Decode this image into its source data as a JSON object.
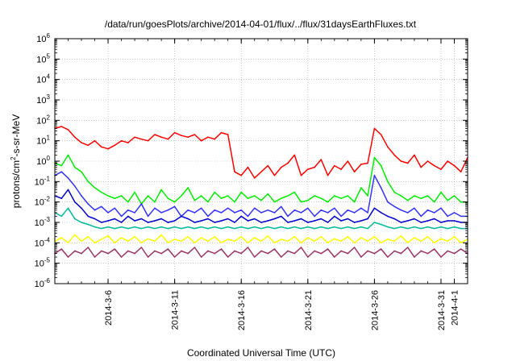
{
  "chart_data": {
    "type": "line",
    "title": "/data/run/goesPlots/archive/2014-04-01/flux/../flux/31daysEarthFluxes.txt",
    "xlabel": "Coordinated Universal Time (UTC)",
    "ylabel": "protons/cm2-s-sr-MeV",
    "ylabel_parts": [
      "protons/cm",
      "2",
      "-s-sr-MeV"
    ],
    "yscale": "log",
    "ylim_exp": [
      -6,
      6
    ],
    "xlim_days": [
      0,
      31
    ],
    "grid": true,
    "x_ticks": [
      {
        "label": "2014-3-6",
        "day": 4
      },
      {
        "label": "2014-3-11",
        "day": 9
      },
      {
        "label": "2014-3-16",
        "day": 14
      },
      {
        "label": "2014-3-21",
        "day": 19
      },
      {
        "label": "2014-3-26",
        "day": 24
      },
      {
        "label": "2014-3-31",
        "day": 29
      },
      {
        "label": "2014-4-1",
        "day": 30
      }
    ],
    "y_tick_exponents": [
      -6,
      -5,
      -4,
      -3,
      -2,
      -1,
      0,
      1,
      2,
      3,
      4,
      5,
      6
    ],
    "series": [
      {
        "color": "#ff0000",
        "x": [
          0,
          0.5,
          1,
          1.5,
          2,
          2.5,
          3,
          3.5,
          4,
          4.5,
          5,
          5.5,
          6,
          6.5,
          7,
          7.5,
          8,
          8.5,
          9,
          9.5,
          10,
          10.5,
          11,
          11.5,
          12,
          12.5,
          13,
          13.5,
          14,
          14.5,
          15,
          15.5,
          16,
          16.5,
          17,
          17.5,
          18,
          18.5,
          19,
          19.5,
          20,
          20.5,
          21,
          21.5,
          22,
          22.5,
          23,
          23.5,
          24,
          24.5,
          25,
          25.5,
          26,
          26.5,
          27,
          27.5,
          28,
          28.5,
          29,
          29.5,
          30,
          30.5,
          31
        ],
        "values": [
          40,
          50,
          35,
          15,
          8,
          6,
          10,
          5,
          4,
          6,
          10,
          8,
          15,
          12,
          10,
          20,
          15,
          12,
          25,
          18,
          15,
          20,
          10,
          15,
          12,
          25,
          20,
          0.3,
          0.2,
          0.5,
          0.15,
          0.3,
          0.6,
          0.2,
          0.5,
          0.8,
          2,
          0.2,
          0.4,
          0.5,
          1.2,
          0.2,
          0.6,
          0.4,
          1,
          0.3,
          0.7,
          0.8,
          40,
          20,
          5,
          2,
          1,
          0.8,
          2,
          0.5,
          1,
          0.6,
          0.4,
          1,
          0.6,
          0.3,
          1.5
        ]
      },
      {
        "color": "#00ee00",
        "x": [
          0,
          0.5,
          1,
          1.5,
          2,
          2.5,
          3,
          3.5,
          4,
          4.5,
          5,
          5.5,
          6,
          6.5,
          7,
          7.5,
          8,
          8.5,
          9,
          9.5,
          10,
          10.5,
          11,
          11.5,
          12,
          12.5,
          13,
          13.5,
          14,
          14.5,
          15,
          15.5,
          16,
          16.5,
          17,
          17.5,
          18,
          18.5,
          19,
          19.5,
          20,
          20.5,
          21,
          21.5,
          22,
          22.5,
          23,
          23.5,
          24,
          24.5,
          25,
          25.5,
          26,
          26.5,
          27,
          27.5,
          28,
          28.5,
          29,
          29.5,
          30,
          30.5,
          31
        ],
        "values": [
          0.8,
          0.6,
          2,
          0.5,
          0.3,
          0.1,
          0.05,
          0.03,
          0.02,
          0.015,
          0.02,
          0.01,
          0.03,
          0.008,
          0.02,
          0.01,
          0.04,
          0.015,
          0.01,
          0.02,
          0.05,
          0.012,
          0.02,
          0.01,
          0.03,
          0.015,
          0.02,
          0.01,
          0.03,
          0.015,
          0.02,
          0.012,
          0.025,
          0.01,
          0.015,
          0.02,
          0.03,
          0.01,
          0.012,
          0.02,
          0.015,
          0.01,
          0.02,
          0.015,
          0.02,
          0.01,
          0.05,
          0.02,
          1.5,
          0.6,
          0.1,
          0.03,
          0.02,
          0.012,
          0.02,
          0.015,
          0.02,
          0.01,
          0.03,
          0.012,
          0.02,
          0.01,
          0.01
        ]
      },
      {
        "color": "#3333ff",
        "x": [
          0,
          0.5,
          1,
          1.5,
          2,
          2.5,
          3,
          3.5,
          4,
          4.5,
          5,
          5.5,
          6,
          6.5,
          7,
          7.5,
          8,
          8.5,
          9,
          9.5,
          10,
          10.5,
          11,
          11.5,
          12,
          12.5,
          13,
          13.5,
          14,
          14.5,
          15,
          15.5,
          16,
          16.5,
          17,
          17.5,
          18,
          18.5,
          19,
          19.5,
          20,
          20.5,
          21,
          21.5,
          22,
          22.5,
          23,
          23.5,
          24,
          24.5,
          25,
          25.5,
          26,
          26.5,
          27,
          27.5,
          28,
          28.5,
          29,
          29.5,
          30,
          30.5,
          31
        ],
        "values": [
          0.2,
          0.3,
          0.15,
          0.06,
          0.02,
          0.008,
          0.004,
          0.006,
          0.003,
          0.005,
          0.002,
          0.004,
          0.003,
          0.008,
          0.002,
          0.005,
          0.003,
          0.004,
          0.006,
          0.002,
          0.004,
          0.003,
          0.005,
          0.002,
          0.004,
          0.003,
          0.005,
          0.003,
          0.004,
          0.002,
          0.005,
          0.003,
          0.004,
          0.003,
          0.006,
          0.002,
          0.004,
          0.003,
          0.005,
          0.002,
          0.004,
          0.003,
          0.005,
          0.002,
          0.004,
          0.003,
          0.005,
          0.003,
          0.2,
          0.05,
          0.01,
          0.006,
          0.004,
          0.003,
          0.005,
          0.002,
          0.004,
          0.003,
          0.005,
          0.002,
          0.003,
          0.002,
          0.002
        ]
      },
      {
        "color": "#0000cc",
        "x": [
          0,
          0.5,
          1,
          1.5,
          2,
          2.5,
          3,
          3.5,
          4,
          4.5,
          5,
          5.5,
          6,
          6.5,
          7,
          7.5,
          8,
          8.5,
          9,
          9.5,
          10,
          10.5,
          11,
          11.5,
          12,
          12.5,
          13,
          13.5,
          14,
          14.5,
          15,
          15.5,
          16,
          16.5,
          17,
          17.5,
          18,
          18.5,
          19,
          19.5,
          20,
          20.5,
          21,
          21.5,
          22,
          22.5,
          23,
          23.5,
          24,
          24.5,
          25,
          25.5,
          26,
          26.5,
          27,
          27.5,
          28,
          28.5,
          29,
          29.5,
          30,
          30.5,
          31
        ],
        "values": [
          0.02,
          0.015,
          0.04,
          0.01,
          0.005,
          0.002,
          0.0015,
          0.001,
          0.0012,
          0.0015,
          0.001,
          0.002,
          0.0012,
          0.0015,
          0.001,
          0.0012,
          0.0015,
          0.001,
          0.0012,
          0.002,
          0.0015,
          0.001,
          0.0012,
          0.0015,
          0.001,
          0.0012,
          0.0015,
          0.001,
          0.002,
          0.0012,
          0.0015,
          0.001,
          0.0012,
          0.0015,
          0.002,
          0.001,
          0.0012,
          0.0015,
          0.001,
          0.0012,
          0.0015,
          0.001,
          0.002,
          0.0012,
          0.0015,
          0.001,
          0.0012,
          0.0015,
          0.005,
          0.003,
          0.002,
          0.0015,
          0.001,
          0.0012,
          0.0015,
          0.001,
          0.0012,
          0.0015,
          0.001,
          0.0012,
          0.0012,
          0.001,
          0.001
        ]
      },
      {
        "color": "#00bb99",
        "x": [
          0,
          0.5,
          1,
          1.5,
          2,
          2.5,
          3,
          3.5,
          4,
          4.5,
          5,
          5.5,
          6,
          6.5,
          7,
          7.5,
          8,
          8.5,
          9,
          9.5,
          10,
          10.5,
          11,
          11.5,
          12,
          12.5,
          13,
          13.5,
          14,
          14.5,
          15,
          15.5,
          16,
          16.5,
          17,
          17.5,
          18,
          18.5,
          19,
          19.5,
          20,
          20.5,
          21,
          21.5,
          22,
          22.5,
          23,
          23.5,
          24,
          24.5,
          25,
          25.5,
          26,
          26.5,
          27,
          27.5,
          28,
          28.5,
          29,
          29.5,
          30,
          30.5,
          31
        ],
        "values": [
          0.003,
          0.002,
          0.005,
          0.0015,
          0.001,
          0.0008,
          0.0006,
          0.0005,
          0.0006,
          0.0005,
          0.0006,
          0.0005,
          0.0006,
          0.0005,
          0.0006,
          0.0005,
          0.0006,
          0.0005,
          0.0006,
          0.0005,
          0.0006,
          0.0005,
          0.0006,
          0.0005,
          0.0006,
          0.0005,
          0.0006,
          0.0005,
          0.0006,
          0.0005,
          0.0006,
          0.0005,
          0.0006,
          0.0005,
          0.0006,
          0.0005,
          0.0006,
          0.0005,
          0.0006,
          0.0005,
          0.0006,
          0.0005,
          0.0006,
          0.0005,
          0.0006,
          0.0005,
          0.0006,
          0.0005,
          0.001,
          0.0008,
          0.0006,
          0.0005,
          0.0006,
          0.0005,
          0.0006,
          0.0005,
          0.0006,
          0.0005,
          0.0006,
          0.0005,
          0.0006,
          0.0005,
          0.0005
        ]
      },
      {
        "color": "#ffff00",
        "x": [
          0,
          0.5,
          1,
          1.5,
          2,
          2.5,
          3,
          3.5,
          4,
          4.5,
          5,
          5.5,
          6,
          6.5,
          7,
          7.5,
          8,
          8.5,
          9,
          9.5,
          10,
          10.5,
          11,
          11.5,
          12,
          12.5,
          13,
          13.5,
          14,
          14.5,
          15,
          15.5,
          16,
          16.5,
          17,
          17.5,
          18,
          18.5,
          19,
          19.5,
          20,
          20.5,
          21,
          21.5,
          22,
          22.5,
          23,
          23.5,
          24,
          24.5,
          25,
          25.5,
          26,
          26.5,
          27,
          27.5,
          28,
          28.5,
          29,
          29.5,
          30,
          30.5,
          31
        ],
        "values": [
          0.00012,
          0.00018,
          0.0001,
          0.00025,
          0.00012,
          0.0002,
          0.0001,
          0.00015,
          0.00022,
          0.0001,
          0.00018,
          0.00012,
          0.0002,
          0.0001,
          0.00016,
          0.00012,
          0.00025,
          0.0001,
          0.00015,
          0.00012,
          0.0002,
          0.0001,
          0.00018,
          0.00012,
          0.0002,
          0.0001,
          0.00015,
          0.00012,
          0.0002,
          0.0001,
          0.00018,
          0.00012,
          0.00022,
          0.0001,
          0.00015,
          0.00012,
          0.0002,
          0.0001,
          0.00018,
          0.00012,
          0.0002,
          0.0001,
          0.00016,
          0.00012,
          0.0002,
          0.0001,
          0.00018,
          0.00012,
          0.0002,
          0.0001,
          0.00015,
          0.00012,
          0.00022,
          0.0001,
          0.00018,
          0.00012,
          0.0002,
          0.0001,
          0.00016,
          0.00012,
          0.0002,
          0.0001,
          0.00015
        ]
      },
      {
        "color": "#993366",
        "x": [
          0,
          0.5,
          1,
          1.5,
          2,
          2.5,
          3,
          3.5,
          4,
          4.5,
          5,
          5.5,
          6,
          6.5,
          7,
          7.5,
          8,
          8.5,
          9,
          9.5,
          10,
          10.5,
          11,
          11.5,
          12,
          12.5,
          13,
          13.5,
          14,
          14.5,
          15,
          15.5,
          16,
          16.5,
          17,
          17.5,
          18,
          18.5,
          19,
          19.5,
          20,
          20.5,
          21,
          21.5,
          22,
          22.5,
          23,
          23.5,
          24,
          24.5,
          25,
          25.5,
          26,
          26.5,
          27,
          27.5,
          28,
          28.5,
          29,
          29.5,
          30,
          30.5,
          31
        ],
        "values": [
          3e-05,
          5e-05,
          2e-05,
          4e-05,
          3e-05,
          6e-05,
          2e-05,
          4e-05,
          3e-05,
          5e-05,
          2e-05,
          4e-05,
          3e-05,
          6e-05,
          2e-05,
          4e-05,
          3e-05,
          5e-05,
          2e-05,
          4e-05,
          3e-05,
          6e-05,
          2e-05,
          4e-05,
          3e-05,
          5e-05,
          2e-05,
          4e-05,
          3e-05,
          6e-05,
          2e-05,
          4e-05,
          3e-05,
          5e-05,
          2e-05,
          4e-05,
          3e-05,
          6e-05,
          2e-05,
          4e-05,
          3e-05,
          5e-05,
          2e-05,
          4e-05,
          3e-05,
          6e-05,
          2e-05,
          4e-05,
          3e-05,
          5e-05,
          2e-05,
          4e-05,
          3e-05,
          6e-05,
          2e-05,
          4e-05,
          3e-05,
          5e-05,
          2e-05,
          4e-05,
          3e-05,
          5e-05,
          3e-05
        ]
      }
    ]
  }
}
